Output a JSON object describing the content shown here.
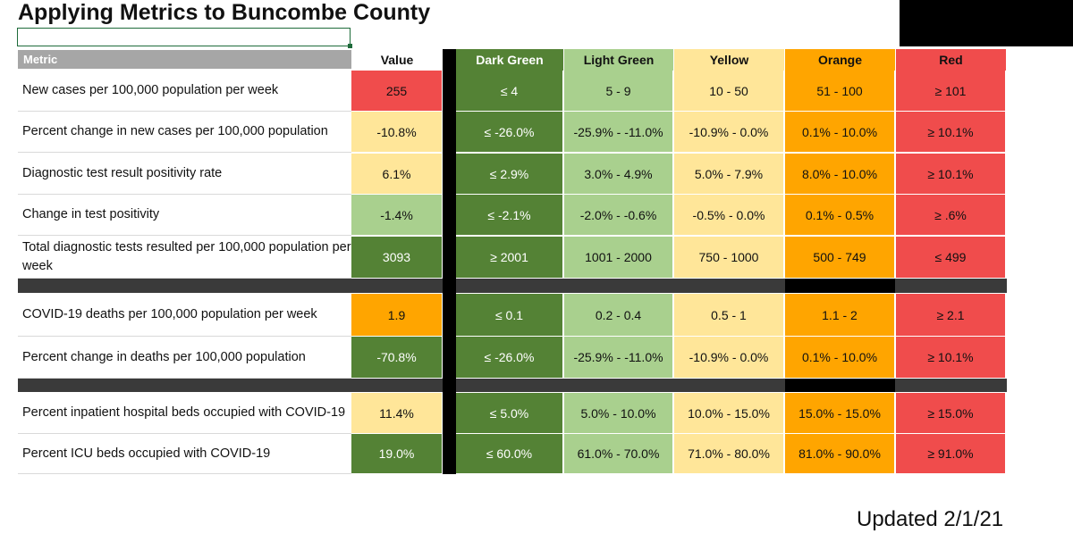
{
  "title": "Applying Metrics to Buncombe County",
  "updated": "Updated 2/1/21",
  "headers": {
    "metric": "Metric",
    "value": "Value",
    "dark_green": "Dark Green",
    "light_green": "Light Green",
    "yellow": "Yellow",
    "orange": "Orange",
    "red": "Red"
  },
  "colors": {
    "dark_green": "#548235",
    "light_green": "#a9d08e",
    "yellow": "#ffe699",
    "orange": "#ffa500",
    "red": "#f04c4c"
  },
  "rows": [
    {
      "metric": "New cases  per 100,000 population per week",
      "value": "255",
      "value_color": "red",
      "dark_green": "≤ 4",
      "light_green": "5 - 9",
      "yellow": "10 - 50",
      "orange": "51 - 100",
      "red": "≥ 101"
    },
    {
      "metric": "Percent change in new cases per 100,000 population",
      "value": "-10.8%",
      "value_color": "yellow",
      "dark_green": "≤ -26.0%",
      "light_green": "-25.9% - -11.0%",
      "yellow": "-10.9% - 0.0%",
      "orange": "0.1% - 10.0%",
      "red": "≥ 10.1%"
    },
    {
      "metric": "Diagnostic test result positivity rate",
      "value": "6.1%",
      "value_color": "yellow",
      "dark_green": "≤ 2.9%",
      "light_green": "3.0% - 4.9%",
      "yellow": "5.0% - 7.9%",
      "orange": "8.0% - 10.0%",
      "red": "≥ 10.1%"
    },
    {
      "metric": "Change in test positivity",
      "value": "-1.4%",
      "value_color": "light_green",
      "dark_green": "≤ -2.1%",
      "light_green": "-2.0% - -0.6%",
      "yellow": "-0.5% - 0.0%",
      "orange": "0.1% - 0.5%",
      "red": "≥ .6%"
    },
    {
      "metric": "Total diagnostic tests resulted per 100,000 population per week",
      "value": "3093",
      "value_color": "dark_green",
      "dark_green": "≥ 2001",
      "light_green": "1001 - 2000",
      "yellow": "750 - 1000",
      "orange": "500 - 749",
      "red": "≤ 499"
    },
    {
      "metric": "COVID-19 deaths per 100,000 population per week",
      "value": "1.9",
      "value_color": "orange",
      "dark_green": "≤ 0.1",
      "light_green": "0.2 - 0.4",
      "yellow": "0.5 - 1",
      "orange": "1.1 - 2",
      "red": "≥ 2.1"
    },
    {
      "metric": "Percent change in deaths per 100,000 population",
      "value": "-70.8%",
      "value_color": "dark_green",
      "dark_green": "≤ -26.0%",
      "light_green": "-25.9% - -11.0%",
      "yellow": "-10.9% - 0.0%",
      "orange": "0.1% - 10.0%",
      "red": "≥ 10.1%"
    },
    {
      "metric": "Percent inpatient hospital beds occupied with COVID-19",
      "value": "11.4%",
      "value_color": "yellow",
      "dark_green": "≤ 5.0%",
      "light_green": "5.0% - 10.0%",
      "yellow": "10.0% - 15.0%",
      "orange": "15.0% - 15.0%",
      "red": "≥ 15.0%"
    },
    {
      "metric": "Percent ICU beds occupied with COVID-19",
      "value": "19.0%",
      "value_color": "dark_green",
      "dark_green": "≤ 60.0%",
      "light_green": "61.0% - 70.0%",
      "yellow": "71.0% - 80.0%",
      "orange": "81.0% - 90.0%",
      "red": "≥ 91.0%"
    }
  ]
}
